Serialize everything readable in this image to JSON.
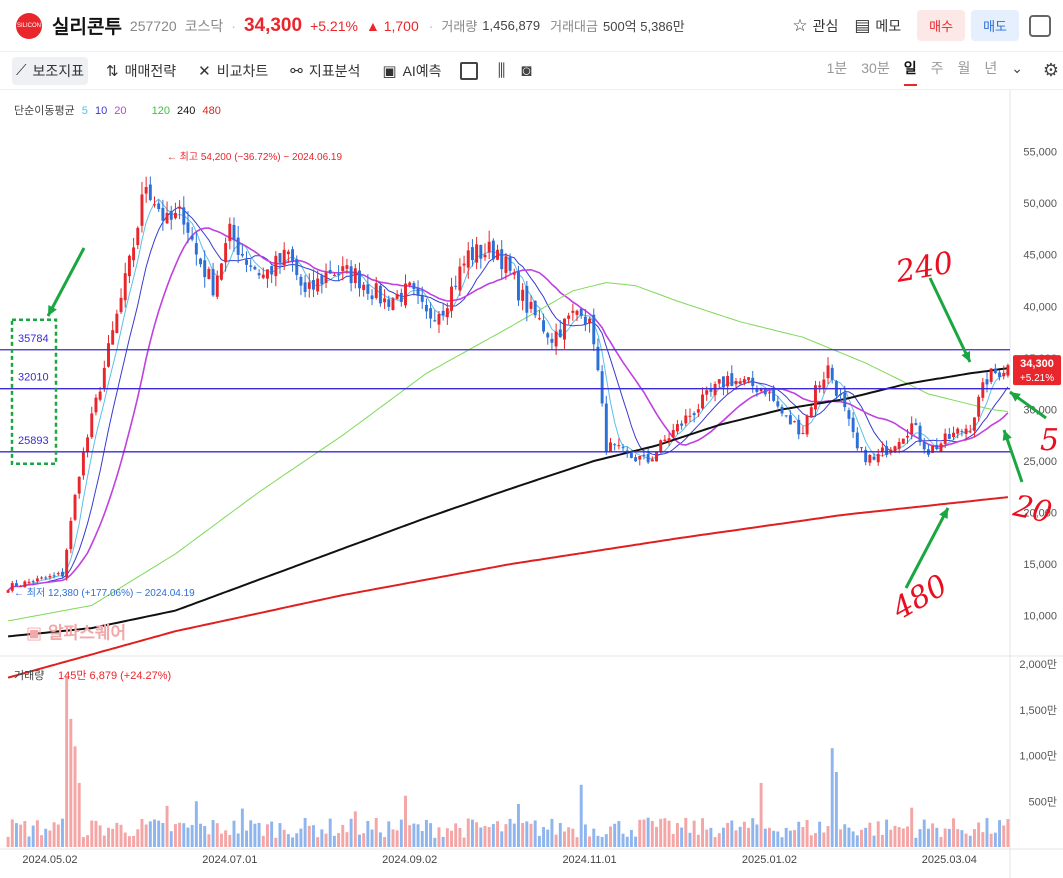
{
  "header": {
    "logo_text": "SILICON",
    "name": "실리콘투",
    "code": "257720",
    "market": "코스닥",
    "price": "34,300",
    "change_pct": "+5.21%",
    "change_abs": "▲ 1,700",
    "volume_label": "거래량",
    "volume_value": "1,456,879",
    "amount_label": "거래대금",
    "amount_value": "500억 5,386만",
    "watch_label": "관심",
    "memo_label": "메모",
    "buy_label": "매수",
    "sell_label": "매도"
  },
  "toolbar": {
    "items": [
      "보조지표",
      "매매전략",
      "비교차트",
      "지표분석",
      "AI예측"
    ],
    "periods": [
      "1분",
      "30분",
      "일",
      "주",
      "월",
      "년"
    ],
    "active_period": "일"
  },
  "legend": {
    "title": "단순이동평균",
    "short": [
      "5",
      "10",
      "20"
    ],
    "long": [
      "120",
      "240",
      "480"
    ]
  },
  "colors": {
    "up": "#e8262c",
    "down": "#2b6fd8",
    "ma5": "#5bc0e8",
    "ma10": "#3a3ad0",
    "ma20": "#c040e0",
    "ma120": "#7ed957",
    "ma240": "#111111",
    "ma480": "#e02020",
    "hline": "#3a2ad8",
    "annotation_red": "#e81020",
    "annotation_green": "#1aa640",
    "watermark": "#f2a8a8"
  },
  "chart_data": {
    "type": "candlestick",
    "y_ticks": [
      "55,000",
      "50,000",
      "45,000",
      "40,000",
      "35,000",
      "30,000",
      "25,000",
      "20,000",
      "15,000",
      "10,000"
    ],
    "y_tick_values": [
      55000,
      50000,
      45000,
      40000,
      35000,
      30000,
      25000,
      20000,
      15000,
      10000
    ],
    "ylim": [
      6000,
      60000
    ],
    "x_ticks": [
      "2024.05.02",
      "2024.07.01",
      "2024.09.02",
      "2024.11.01",
      "2025.01.02",
      "2025.03.04"
    ],
    "x_tick_index": [
      10,
      53,
      96,
      139,
      182,
      225
    ],
    "n_days": 240,
    "close_series_points": [
      [
        0,
        12800
      ],
      [
        13,
        14000
      ],
      [
        17,
        24000
      ],
      [
        23,
        34000
      ],
      [
        29,
        44000
      ],
      [
        33,
        52000
      ],
      [
        38,
        48000
      ],
      [
        42,
        49000
      ],
      [
        45,
        45000
      ],
      [
        49,
        42000
      ],
      [
        53,
        47000
      ],
      [
        57,
        44500
      ],
      [
        61,
        43000
      ],
      [
        67,
        45000
      ],
      [
        71,
        41000
      ],
      [
        77,
        43500
      ],
      [
        83,
        43000
      ],
      [
        90,
        40500
      ],
      [
        96,
        41500
      ],
      [
        100,
        39000
      ],
      [
        104,
        40000
      ],
      [
        110,
        45000
      ],
      [
        117,
        45500
      ],
      [
        124,
        40000
      ],
      [
        130,
        37000
      ],
      [
        137,
        40000
      ],
      [
        140,
        37000
      ],
      [
        143,
        26500
      ],
      [
        148,
        25500
      ],
      [
        153,
        25000
      ],
      [
        157,
        27000
      ],
      [
        163,
        29500
      ],
      [
        168,
        31500
      ],
      [
        172,
        33000
      ],
      [
        176,
        32500
      ],
      [
        181,
        32000
      ],
      [
        186,
        29000
      ],
      [
        190,
        28000
      ],
      [
        193,
        32000
      ],
      [
        196,
        34000
      ],
      [
        199,
        31000
      ],
      [
        203,
        26000
      ],
      [
        207,
        25000
      ],
      [
        212,
        27000
      ],
      [
        216,
        28500
      ],
      [
        220,
        26000
      ],
      [
        224,
        27000
      ],
      [
        230,
        28500
      ],
      [
        234,
        33000
      ],
      [
        239,
        34300
      ]
    ],
    "ma_points": {
      "120": [
        [
          0,
          9500
        ],
        [
          20,
          11000
        ],
        [
          40,
          16000
        ],
        [
          60,
          22000
        ],
        [
          80,
          27500
        ],
        [
          100,
          33500
        ],
        [
          120,
          38000
        ],
        [
          135,
          41500
        ],
        [
          143,
          42300
        ],
        [
          150,
          42000
        ],
        [
          160,
          40500
        ],
        [
          175,
          38500
        ],
        [
          190,
          37000
        ],
        [
          205,
          34500
        ],
        [
          220,
          31500
        ],
        [
          235,
          30000
        ],
        [
          239,
          29800
        ]
      ],
      "240": [
        [
          0,
          8000
        ],
        [
          20,
          8800
        ],
        [
          40,
          10500
        ],
        [
          60,
          13500
        ],
        [
          80,
          16500
        ],
        [
          100,
          19500
        ],
        [
          120,
          22300
        ],
        [
          140,
          25000
        ],
        [
          155,
          26500
        ],
        [
          170,
          28500
        ],
        [
          185,
          30000
        ],
        [
          200,
          31000
        ],
        [
          215,
          32500
        ],
        [
          230,
          33500
        ],
        [
          239,
          34000
        ]
      ],
      "480": [
        [
          0,
          4000
        ],
        [
          40,
          8500
        ],
        [
          80,
          12000
        ],
        [
          120,
          15000
        ],
        [
          160,
          17500
        ],
        [
          200,
          19800
        ],
        [
          239,
          21500
        ]
      ]
    },
    "hlines": [
      "35784",
      "32010",
      "25893"
    ],
    "hline_values": [
      35784,
      32010,
      25893
    ],
    "high_note": "최고 54,200 (−36.72%) − 2024.06.19",
    "low_note": "최저 12,380 (+177.06%) − 2024.04.19",
    "last_price_label": "34,300",
    "last_pct_label": "+5.21%",
    "volume": {
      "label": "거래량",
      "value_text": "145만 6,879 (+24.27%)",
      "y_ticks": [
        "2,000만",
        "1,500만",
        "1,000만",
        "500만"
      ],
      "y_tick_values": [
        20000000,
        15000000,
        10000000,
        5000000
      ],
      "ylim": [
        0,
        20000000
      ],
      "spikes": [
        [
          14,
          18600000
        ],
        [
          15,
          14000000
        ],
        [
          16,
          11000000
        ],
        [
          17,
          7000000
        ],
        [
          38,
          4500000
        ],
        [
          45,
          5000000
        ],
        [
          56,
          4200000
        ],
        [
          83,
          3900000
        ],
        [
          95,
          5600000
        ],
        [
          122,
          4700000
        ],
        [
          137,
          6800000
        ],
        [
          152,
          3000000
        ],
        [
          153,
          3200000
        ],
        [
          180,
          7000000
        ],
        [
          197,
          10800000
        ],
        [
          198,
          8200000
        ],
        [
          216,
          4300000
        ]
      ]
    },
    "annotations": {
      "handwritten": [
        "240",
        "5",
        "20",
        "480"
      ],
      "watermark": "알파스퀘어"
    }
  }
}
